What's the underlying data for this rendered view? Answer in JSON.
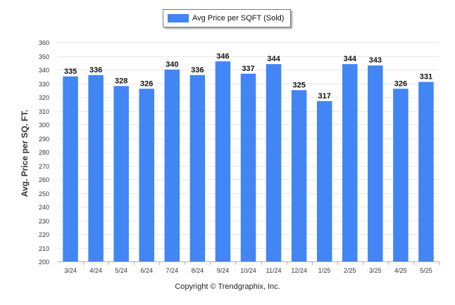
{
  "chart_data": {
    "type": "bar",
    "categories": [
      "3/24",
      "4/24",
      "5/24",
      "6/24",
      "7/24",
      "8/24",
      "9/24",
      "10/24",
      "11/24",
      "12/24",
      "1/25",
      "2/25",
      "3/25",
      "4/25",
      "5/25"
    ],
    "series": [
      {
        "name": "Avg Price per SQFT (Sold)",
        "values": [
          335,
          336,
          328,
          326,
          340,
          336,
          346,
          337,
          344,
          325,
          317,
          344,
          343,
          326,
          331
        ]
      }
    ],
    "ylabel": "Avg. Price per SQ. FT.",
    "xlabel": "",
    "ylim": [
      200,
      360
    ],
    "yticks": [
      200,
      210,
      220,
      230,
      240,
      250,
      260,
      270,
      280,
      290,
      300,
      310,
      320,
      330,
      340,
      350,
      360
    ],
    "grid": true,
    "legend_position": "top-center",
    "data_labels": true
  },
  "colors": {
    "bar": "#4285f4",
    "grid": "#e6e6e6",
    "axis": "#b0b0b0"
  },
  "footer": {
    "copyright": "Copyright © Trendgraphix, Inc."
  }
}
